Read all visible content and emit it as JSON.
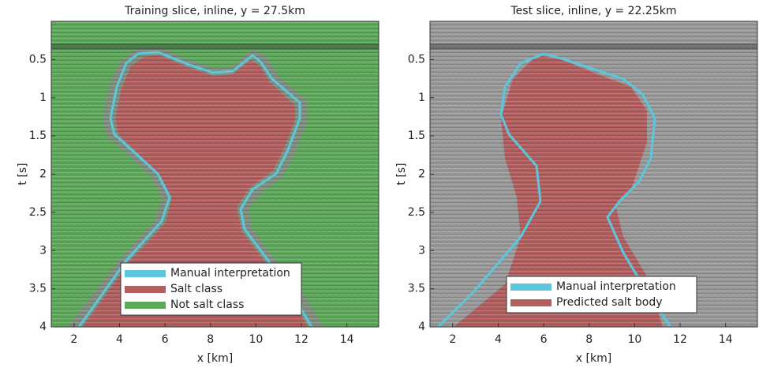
{
  "chart_data": [
    {
      "type": "image",
      "title": "Training slice, inline, y = 27.5km",
      "xlabel": "x [km]",
      "ylabel": "t [s]",
      "xlim": [
        1,
        15.4
      ],
      "ylim": [
        0,
        4
      ],
      "y_inverted": true,
      "xticks": [
        2,
        4,
        6,
        8,
        10,
        12,
        14
      ],
      "yticks": [
        0.5,
        1,
        1.5,
        2,
        2.5,
        3,
        3.5,
        4
      ],
      "series": [
        {
          "name": "Manual interpretation",
          "color": "#5cc6dc"
        },
        {
          "name": "Salt class",
          "color": "#b35f5f"
        },
        {
          "name": "Not salt class",
          "color": "#5ea95b"
        }
      ]
    },
    {
      "type": "image",
      "title": "Test slice, inline, y = 22.25km",
      "xlabel": "x [km]",
      "ylabel": "t [s]",
      "xlim": [
        1,
        15.4
      ],
      "ylim": [
        0,
        4
      ],
      "y_inverted": true,
      "xticks": [
        2,
        4,
        6,
        8,
        10,
        12,
        14
      ],
      "yticks": [
        0.5,
        1,
        1.5,
        2,
        2.5,
        3,
        3.5,
        4
      ],
      "series": [
        {
          "name": "Manual interpretation",
          "color": "#5cc6dc"
        },
        {
          "name": "Predicted salt body",
          "color": "#b35f5f"
        }
      ]
    }
  ]
}
